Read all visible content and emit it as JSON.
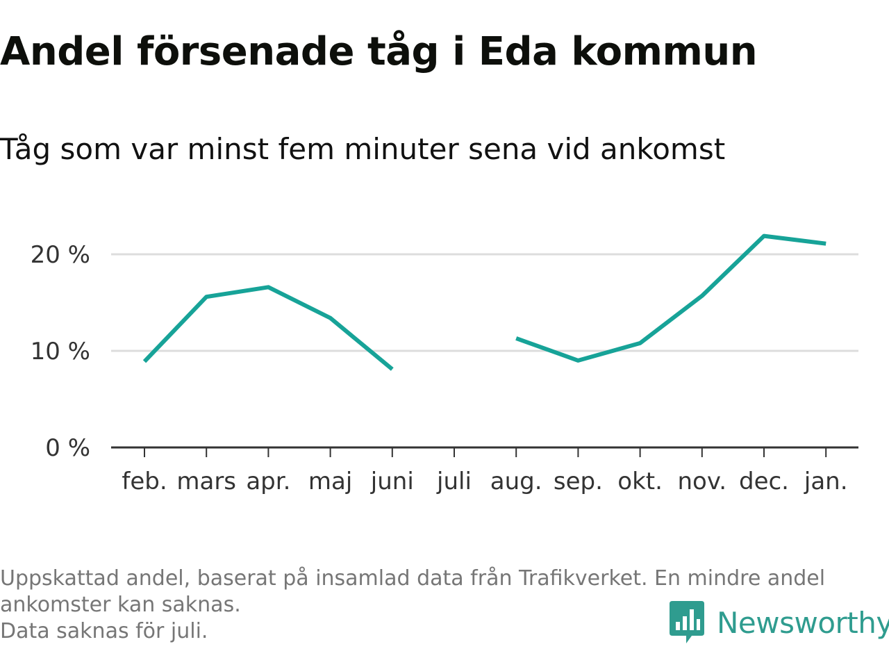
{
  "title": "Andel försenade tåg i Eda kommun",
  "subtitle": "Tåg som var minst fem minuter sena vid ankomst",
  "footer": {
    "line1": "Uppskattad andel, baserat på insamlad data från Trafikverket. En mindre andel",
    "line2": "ankomster kan saknas.",
    "line3": "Data saknas för juli."
  },
  "brand": {
    "name": "Newsworthy",
    "icon": "bar-chart-bubble-icon",
    "color": "#2f9c8f"
  },
  "colors": {
    "line": "#17a398",
    "grid": "#dddddd",
    "axis": "#333333",
    "tick_text": "#333333"
  },
  "chart_data": {
    "type": "line",
    "title": "Andel försenade tåg i Eda kommun",
    "subtitle": "Tåg som var minst fem minuter sena vid ankomst",
    "categories": [
      "feb.",
      "mars",
      "apr.",
      "maj",
      "juni",
      "juli",
      "aug.",
      "sep.",
      "okt.",
      "nov.",
      "dec.",
      "jan."
    ],
    "series": [
      {
        "values": [
          8.9,
          15.6,
          16.6,
          13.4,
          8.1,
          null,
          11.3,
          9.0,
          10.8,
          15.7,
          21.9,
          21.1
        ]
      }
    ],
    "y_ticks": [
      0,
      10,
      20
    ],
    "y_tick_labels": [
      "0 %",
      "10 %",
      "20 %"
    ],
    "ylim": [
      0,
      22
    ],
    "grid": true,
    "legend": false,
    "xlabel": "",
    "ylabel": ""
  }
}
